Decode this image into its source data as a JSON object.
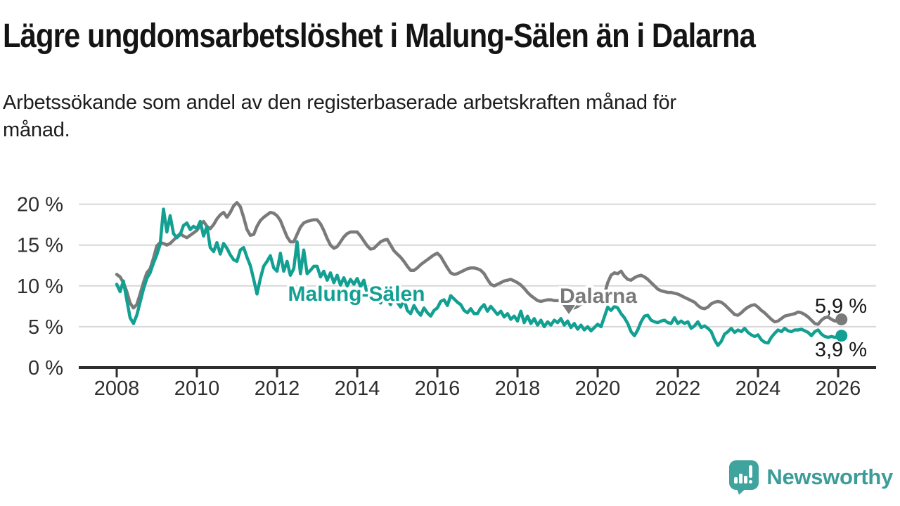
{
  "title": "Lägre ungdomsarbetslöshet i Malung-Sälen än i Dalarna",
  "subtitle": "Arbetssökande som andel av den registerbaserade arbetskraften månad för månad.",
  "footer": {
    "brand": "Newsworthy"
  },
  "colors": {
    "malung_salen": "#11a092",
    "dalarna": "#7a7a7a",
    "grid": "#d8d8d8",
    "axis": "#2e2e2e",
    "text": "#161616",
    "brand_teal": "#3b9c98",
    "background": "#ffffff"
  },
  "chart_data": {
    "type": "line",
    "unit": "%",
    "frequency": "monthly",
    "x_start": "2008-01",
    "x_end": "2026-02",
    "ylim": [
      0,
      20
    ],
    "grid": true,
    "legend_position": "inline-labels",
    "y_tick_values": [
      0,
      5,
      10,
      15,
      20
    ],
    "y_tick_labels": [
      "0 %",
      "5 %",
      "10 %",
      "15 %",
      "20 %"
    ],
    "x_tick_labels": [
      "2008",
      "2010",
      "2012",
      "2014",
      "2016",
      "2018",
      "2020",
      "2022",
      "2024",
      "2026"
    ],
    "annotations": [
      {
        "text": "Dalarna",
        "arrow": true
      },
      {
        "text": "Malung-Sälen",
        "arrow": false
      }
    ],
    "series": [
      {
        "name": "Dalarna",
        "color": "#7a7a7a",
        "end_label": "5,9 %",
        "end_value": 5.9,
        "values": [
          11.4,
          11.1,
          10.4,
          9.3,
          7.9,
          7.3,
          7.7,
          9.0,
          10.4,
          11.6,
          12.1,
          13.4,
          14.9,
          15.3,
          15.2,
          15.0,
          15.2,
          15.6,
          16.0,
          16.4,
          16.1,
          15.9,
          16.2,
          16.5,
          16.8,
          17.4,
          17.9,
          17.3,
          17.0,
          17.5,
          18.2,
          18.7,
          19.0,
          18.4,
          19.0,
          19.8,
          20.2,
          19.7,
          18.4,
          16.9,
          16.2,
          16.3,
          17.3,
          18.0,
          18.4,
          18.7,
          19.0,
          18.9,
          18.6,
          18.0,
          17.0,
          16.0,
          15.4,
          15.4,
          16.3,
          17.2,
          17.7,
          17.9,
          18.0,
          18.1,
          18.1,
          17.6,
          16.8,
          15.8,
          15.0,
          14.6,
          14.8,
          15.4,
          16.0,
          16.4,
          16.6,
          16.6,
          16.6,
          16.1,
          15.5,
          14.9,
          14.5,
          14.6,
          15.0,
          15.4,
          15.6,
          15.7,
          15.0,
          14.3,
          13.9,
          13.5,
          13.0,
          12.4,
          11.9,
          11.9,
          12.2,
          12.6,
          12.9,
          13.2,
          13.5,
          13.8,
          14.0,
          13.6,
          12.9,
          12.2,
          11.6,
          11.4,
          11.5,
          11.7,
          11.9,
          12.1,
          12.2,
          12.2,
          12.1,
          11.9,
          11.5,
          10.8,
          10.2,
          10.0,
          10.2,
          10.4,
          10.6,
          10.7,
          10.8,
          10.6,
          10.4,
          10.1,
          9.7,
          9.2,
          8.8,
          8.5,
          8.2,
          8.1,
          8.2,
          8.3,
          8.3,
          8.2,
          8.2,
          8.2,
          8.0,
          7.7,
          7.4,
          7.3,
          7.5,
          7.8,
          8.0,
          8.1,
          8.2,
          8.2,
          8.4,
          8.3,
          8.9,
          10.4,
          11.3,
          11.6,
          11.5,
          11.8,
          11.2,
          10.8,
          10.7,
          11.0,
          11.2,
          11.3,
          11.1,
          10.8,
          10.4,
          10.0,
          9.6,
          9.4,
          9.3,
          9.2,
          9.2,
          9.1,
          9.0,
          8.8,
          8.6,
          8.4,
          8.2,
          8.0,
          7.6,
          7.3,
          7.2,
          7.4,
          7.8,
          8.0,
          8.1,
          8.0,
          7.7,
          7.3,
          6.9,
          6.5,
          6.4,
          6.7,
          7.1,
          7.4,
          7.6,
          7.7,
          7.4,
          7.0,
          6.7,
          6.3,
          5.9,
          5.6,
          5.7,
          6.0,
          6.3,
          6.4,
          6.5,
          6.6,
          6.8,
          6.7,
          6.5,
          6.2,
          5.8,
          5.4,
          5.3,
          5.8,
          6.1,
          6.2,
          5.9,
          5.7,
          5.7,
          5.9
        ]
      },
      {
        "name": "Malung-Sälen",
        "color": "#11a092",
        "end_label": "3,9 %",
        "end_value": 3.9,
        "values": [
          10.2,
          9.3,
          10.6,
          8.3,
          6.1,
          5.4,
          6.4,
          8.0,
          9.6,
          10.9,
          11.6,
          12.8,
          13.8,
          15.1,
          19.4,
          16.6,
          18.6,
          16.4,
          15.9,
          16.3,
          17.4,
          17.7,
          16.9,
          17.3,
          17.0,
          17.9,
          16.1,
          17.3,
          14.7,
          14.2,
          15.3,
          13.9,
          15.2,
          14.6,
          13.8,
          13.2,
          13.0,
          14.4,
          14.7,
          13.5,
          12.5,
          10.8,
          9.0,
          10.9,
          12.4,
          13.0,
          13.7,
          12.2,
          11.8,
          14.0,
          11.8,
          13.0,
          11.3,
          12.1,
          15.4,
          11.5,
          14.4,
          11.5,
          11.9,
          12.4,
          12.4,
          11.1,
          11.8,
          10.7,
          11.6,
          10.4,
          11.3,
          10.1,
          11.0,
          10.0,
          10.8,
          10.2,
          10.9,
          9.9,
          10.7,
          9.0,
          8.2,
          9.4,
          8.5,
          7.9,
          9.0,
          8.3,
          7.7,
          8.7,
          8.0,
          7.4,
          8.4,
          7.0,
          6.6,
          7.6,
          6.9,
          6.4,
          7.3,
          6.7,
          6.3,
          7.0,
          7.3,
          8.1,
          8.3,
          7.6,
          8.8,
          8.4,
          8.0,
          7.7,
          7.0,
          6.7,
          7.2,
          6.6,
          6.6,
          7.3,
          7.7,
          6.9,
          7.5,
          7.0,
          6.5,
          6.9,
          6.2,
          6.6,
          5.9,
          6.3,
          5.7,
          6.9,
          5.5,
          6.3,
          5.4,
          6.0,
          5.2,
          5.8,
          5.0,
          5.6,
          5.2,
          5.8,
          5.5,
          6.0,
          5.2,
          5.7,
          4.9,
          5.4,
          4.7,
          5.2,
          4.6,
          5.0,
          4.5,
          4.9,
          5.3,
          5.0,
          6.2,
          7.4,
          7.0,
          7.5,
          7.3,
          6.6,
          6.1,
          5.4,
          4.4,
          3.9,
          4.6,
          5.6,
          6.3,
          6.4,
          5.8,
          5.6,
          5.5,
          5.7,
          5.8,
          5.5,
          5.4,
          6.1,
          5.4,
          5.7,
          5.4,
          5.6,
          4.8,
          5.1,
          5.6,
          4.9,
          5.1,
          4.8,
          4.4,
          3.4,
          2.7,
          3.2,
          4.1,
          4.4,
          4.8,
          4.3,
          4.6,
          4.4,
          4.8,
          4.3,
          4.0,
          3.8,
          4.0,
          3.4,
          3.1,
          3.0,
          3.7,
          4.2,
          4.6,
          4.4,
          4.8,
          4.5,
          4.4,
          4.6,
          4.6,
          4.7,
          4.5,
          4.3,
          3.9,
          4.4,
          4.6,
          4.1,
          3.8,
          3.7,
          3.8,
          3.7,
          3.7,
          3.9
        ]
      }
    ]
  }
}
